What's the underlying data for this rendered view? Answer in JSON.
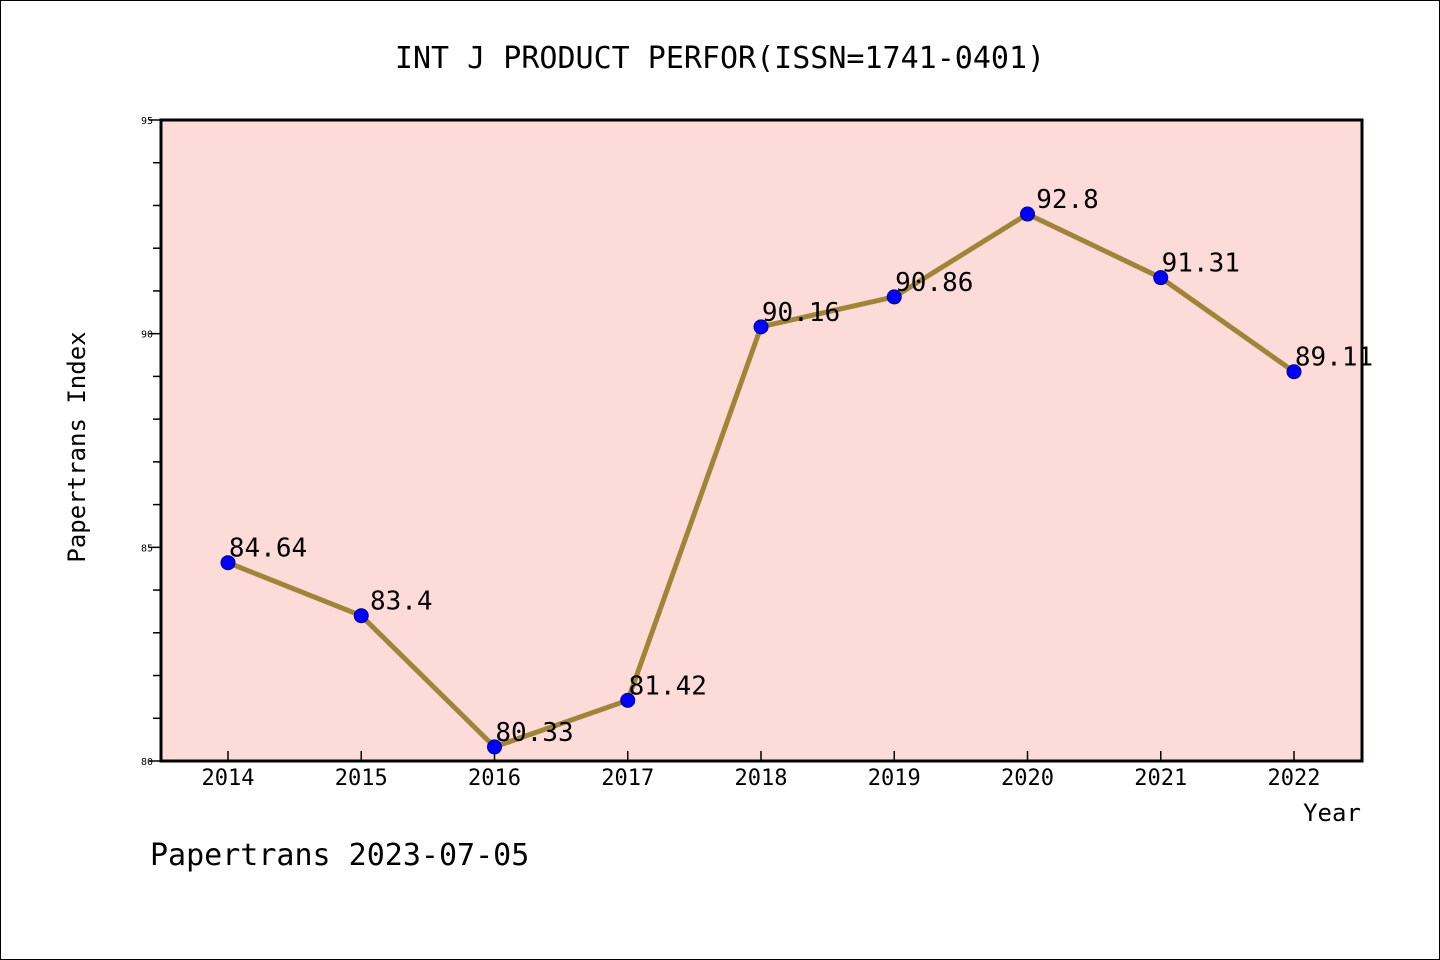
{
  "chart_data": {
    "type": "line",
    "title": "INT J PRODUCT PERFOR(ISSN=1741-0401)",
    "xlabel": "Year",
    "ylabel": "Papertrans Index",
    "categories": [
      "2014",
      "2015",
      "2016",
      "2017",
      "2018",
      "2019",
      "2020",
      "2021",
      "2022"
    ],
    "values": [
      84.64,
      83.4,
      80.33,
      81.42,
      90.16,
      90.86,
      92.8,
      91.31,
      89.11
    ],
    "data_labels": [
      "84.64",
      "83.4",
      "80.33",
      "81.42",
      "90.16",
      "90.86",
      "92.8",
      "91.31",
      "89.11"
    ],
    "ylim": [
      80,
      95
    ],
    "yticks": [
      80,
      85,
      90,
      95
    ],
    "ytick_labels": [
      "80",
      "85",
      "90",
      "95"
    ],
    "grid": false,
    "legend": "none",
    "colors": {
      "plot_background": "#fddbd8",
      "line": "#a08437",
      "marker": "#0000ff",
      "axis": "#000000"
    }
  },
  "footer": "Papertrans 2023-07-05"
}
